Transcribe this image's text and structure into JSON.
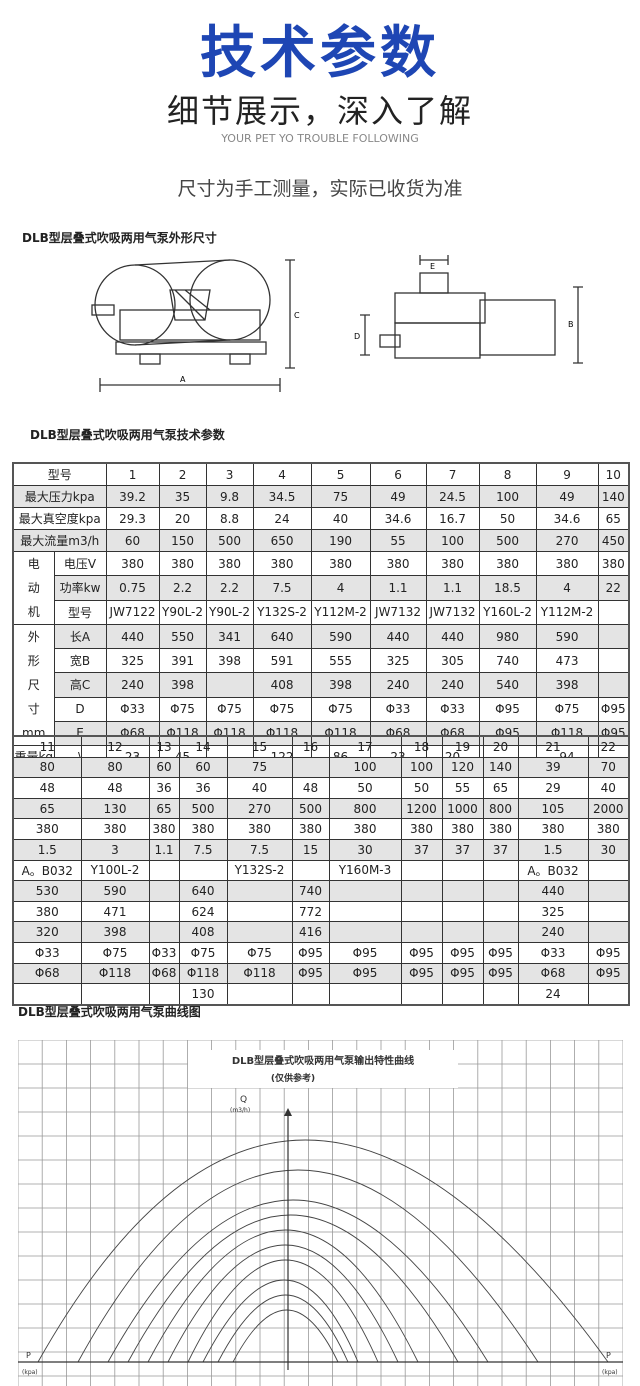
{
  "header": {
    "title": "技术参数",
    "subtitle": "细节展示，深入了解",
    "english": "YOUR PET YO TROUBLE FOLLOWING",
    "note": "尺寸为手工测量，实际已收货为准"
  },
  "sections": {
    "dimensions_title": "DLB型层叠式吹吸两用气泵外形尺寸",
    "params_title": "DLB型层叠式吹吸两用气泵技术参数",
    "curve_title": "DLB型层叠式吹吸两用气泵曲线图"
  },
  "diagram_labels": {
    "a": "A",
    "b": "B",
    "c": "C",
    "d": "D",
    "e": "E"
  },
  "table1": {
    "rows": [
      {
        "group": "",
        "label": "型号",
        "values": [
          "1",
          "2",
          "3",
          "4",
          "5",
          "6",
          "7",
          "8",
          "9",
          "10"
        ]
      },
      {
        "group": "",
        "label": "最大压力kpa",
        "values": [
          "39.2",
          "35",
          "9.8",
          "34.5",
          "75",
          "49",
          "24.5",
          "100",
          "49",
          "140"
        ]
      },
      {
        "group": "",
        "label": "最大真空度kpa",
        "values": [
          "29.3",
          "20",
          "8.8",
          "24",
          "40",
          "34.6",
          "16.7",
          "50",
          "34.6",
          "65"
        ]
      },
      {
        "group": "",
        "label": "最大流量m3/h",
        "values": [
          "60",
          "150",
          "500",
          "650",
          "190",
          "55",
          "100",
          "500",
          "270",
          "450"
        ]
      },
      {
        "group": "电动机",
        "label": "电压V",
        "values": [
          "380",
          "380",
          "380",
          "380",
          "380",
          "380",
          "380",
          "380",
          "380",
          "380"
        ]
      },
      {
        "group": "电动机",
        "label": "功率kw",
        "values": [
          "0.75",
          "2.2",
          "2.2",
          "7.5",
          "4",
          "1.1",
          "1.1",
          "18.5",
          "4",
          "22"
        ]
      },
      {
        "group": "电动机",
        "label": "型号",
        "values": [
          "JW7122",
          "Y90L-2",
          "Y90L-2",
          "Y132S-2",
          "Y112M-2",
          "JW7132",
          "JW7132",
          "Y160L-2",
          "Y112M-2",
          ""
        ]
      },
      {
        "group": "外形尺寸mm",
        "label": "长A",
        "values": [
          "440",
          "550",
          "341",
          "640",
          "590",
          "440",
          "440",
          "980",
          "590",
          ""
        ]
      },
      {
        "group": "外形尺寸mm",
        "label": "宽B",
        "values": [
          "325",
          "391",
          "398",
          "591",
          "555",
          "325",
          "305",
          "740",
          "473",
          ""
        ]
      },
      {
        "group": "外形尺寸mm",
        "label": "高C",
        "values": [
          "240",
          "398",
          "",
          "408",
          "398",
          "240",
          "240",
          "540",
          "398",
          ""
        ]
      },
      {
        "group": "外形尺寸mm",
        "label": "D",
        "values": [
          "Φ33",
          "Φ75",
          "Φ75",
          "Φ75",
          "Φ75",
          "Φ33",
          "Φ33",
          "Φ95",
          "Φ75",
          "Φ95"
        ]
      },
      {
        "group": "外形尺寸mm",
        "label": "E",
        "values": [
          "Φ68",
          "Φ118",
          "Φ118",
          "Φ118",
          "Φ118",
          "Φ68",
          "Φ68",
          "Φ95",
          "Φ118",
          "Φ95"
        ]
      },
      {
        "group": "重量kg",
        "label": "\\",
        "values": [
          "23",
          "45",
          "",
          "122",
          "86",
          "23",
          "20",
          "",
          "94",
          ""
        ]
      }
    ]
  },
  "table2": {
    "rows": [
      [
        "11",
        "12",
        "13",
        "14",
        "15",
        "16",
        "17",
        "18",
        "19",
        "20",
        "21",
        "22"
      ],
      [
        "80",
        "80",
        "60",
        "60",
        "75",
        "",
        "100",
        "100",
        "120",
        "140",
        "39",
        "70"
      ],
      [
        "48",
        "48",
        "36",
        "36",
        "40",
        "48",
        "50",
        "50",
        "55",
        "65",
        "29",
        "40"
      ],
      [
        "65",
        "130",
        "65",
        "500",
        "270",
        "500",
        "800",
        "1200",
        "1000",
        "800",
        "105",
        "2000"
      ],
      [
        "380",
        "380",
        "380",
        "380",
        "380",
        "380",
        "380",
        "380",
        "380",
        "380",
        "380",
        "380"
      ],
      [
        "1.5",
        "3",
        "1.1",
        "7.5",
        "7.5",
        "15",
        "30",
        "37",
        "37",
        "37",
        "1.5",
        "30"
      ],
      [
        "A。B032",
        "Y100L-2",
        "",
        "",
        "Y132S-2",
        "",
        "Y160M-3",
        "",
        "",
        "",
        "A。B032",
        ""
      ],
      [
        "530",
        "590",
        "",
        "640",
        "",
        "740",
        "",
        "",
        "",
        "",
        "440",
        ""
      ],
      [
        "380",
        "471",
        "",
        "624",
        "",
        "772",
        "",
        "",
        "",
        "",
        "325",
        ""
      ],
      [
        "320",
        "398",
        "",
        "408",
        "",
        "416",
        "",
        "",
        "",
        "",
        "240",
        ""
      ],
      [
        "Φ33",
        "Φ75",
        "Φ33",
        "Φ75",
        "Φ75",
        "Φ95",
        "Φ95",
        "Φ95",
        "Φ95",
        "Φ95",
        "Φ33",
        "Φ95"
      ],
      [
        "Φ68",
        "Φ118",
        "Φ68",
        "Φ118",
        "Φ118",
        "Φ95",
        "Φ95",
        "Φ95",
        "Φ95",
        "Φ95",
        "Φ68",
        "Φ95"
      ],
      [
        "",
        "",
        "",
        "130",
        "",
        "",
        "",
        "",
        "",
        "",
        "24",
        ""
      ]
    ]
  },
  "curve_chart": {
    "title": "DLB型层叠式吹吸两用气泵输出特性曲线",
    "subtitle": "(仅供参考)",
    "ylabel": "Q",
    "yunit": "(m3/h)",
    "xlabel": "P",
    "xunit": "(kpa)"
  }
}
